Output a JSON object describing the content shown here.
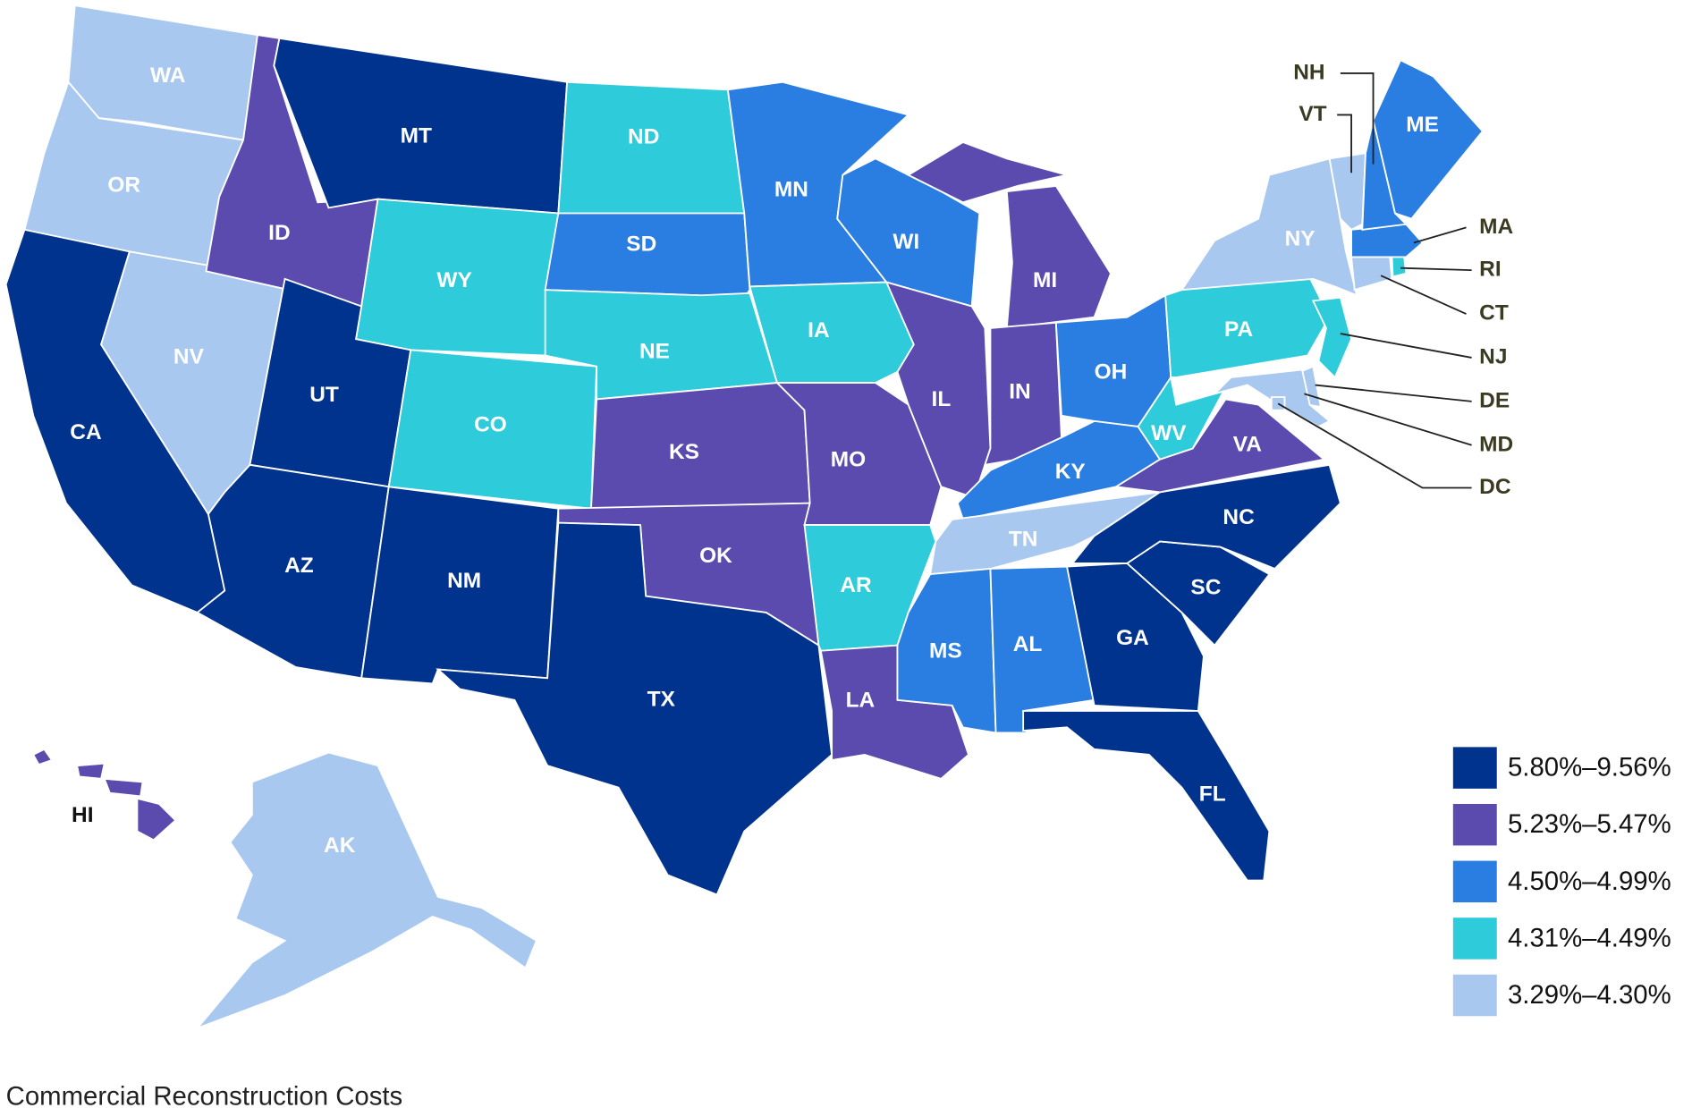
{
  "title": "Commercial Reconstruction Costs",
  "legend": [
    {
      "label": "5.80%–9.56%",
      "color": "#00338d"
    },
    {
      "label": "5.23%–5.47%",
      "color": "#5b4baf"
    },
    {
      "label": "4.50%–4.99%",
      "color": "#2a7de1"
    },
    {
      "label": "4.31%–4.49%",
      "color": "#2ecbdb"
    },
    {
      "label": "3.29%–4.30%",
      "color": "#a9c8f0"
    }
  ],
  "states": [
    {
      "label": "WA",
      "color": "#a9c8f0"
    },
    {
      "label": "OR",
      "color": "#a9c8f0"
    },
    {
      "label": "CA",
      "color": "#00338d"
    },
    {
      "label": "NV",
      "color": "#a9c8f0"
    },
    {
      "label": "ID",
      "color": "#5b4baf"
    },
    {
      "label": "MT",
      "color": "#00338d"
    },
    {
      "label": "WY",
      "color": "#2ecbdb"
    },
    {
      "label": "UT",
      "color": "#00338d"
    },
    {
      "label": "AZ",
      "color": "#00338d"
    },
    {
      "label": "CO",
      "color": "#2ecbdb"
    },
    {
      "label": "NM",
      "color": "#00338d"
    },
    {
      "label": "ND",
      "color": "#2ecbdb"
    },
    {
      "label": "SD",
      "color": "#2a7de1"
    },
    {
      "label": "NE",
      "color": "#2ecbdb"
    },
    {
      "label": "KS",
      "color": "#5b4baf"
    },
    {
      "label": "OK",
      "color": "#5b4baf"
    },
    {
      "label": "TX",
      "color": "#00338d"
    },
    {
      "label": "MN",
      "color": "#2a7de1"
    },
    {
      "label": "IA",
      "color": "#2ecbdb"
    },
    {
      "label": "MO",
      "color": "#5b4baf"
    },
    {
      "label": "AR",
      "color": "#2ecbdb"
    },
    {
      "label": "LA",
      "color": "#5b4baf"
    },
    {
      "label": "WI",
      "color": "#2a7de1"
    },
    {
      "label": "IL",
      "color": "#5b4baf"
    },
    {
      "label": "MI",
      "color": "#5b4baf"
    },
    {
      "label": "IN",
      "color": "#5b4baf"
    },
    {
      "label": "OH",
      "color": "#2a7de1"
    },
    {
      "label": "KY",
      "color": "#2a7de1"
    },
    {
      "label": "TN",
      "color": "#a9c8f0"
    },
    {
      "label": "MS",
      "color": "#2a7de1"
    },
    {
      "label": "AL",
      "color": "#2a7de1"
    },
    {
      "label": "GA",
      "color": "#00338d"
    },
    {
      "label": "FL",
      "color": "#00338d"
    },
    {
      "label": "SC",
      "color": "#00338d"
    },
    {
      "label": "NC",
      "color": "#00338d"
    },
    {
      "label": "VA",
      "color": "#5b4baf"
    },
    {
      "label": "WV",
      "color": "#2ecbdb"
    },
    {
      "label": "PA",
      "color": "#2ecbdb"
    },
    {
      "label": "NY",
      "color": "#a9c8f0"
    },
    {
      "label": "NJ",
      "color": "#2ecbdb"
    },
    {
      "label": "DE",
      "color": "#a9c8f0"
    },
    {
      "label": "MD",
      "color": "#a9c8f0"
    },
    {
      "label": "DC",
      "color": "#a9c8f0"
    },
    {
      "label": "CT",
      "color": "#a9c8f0"
    },
    {
      "label": "RI",
      "color": "#2ecbdb"
    },
    {
      "label": "MA",
      "color": "#2a7de1"
    },
    {
      "label": "VT",
      "color": "#a9c8f0"
    },
    {
      "label": "NH",
      "color": "#2a7de1"
    },
    {
      "label": "ME",
      "color": "#2a7de1"
    },
    {
      "label": "AK",
      "color": "#a9c8f0"
    },
    {
      "label": "HI",
      "color": "#5b4baf"
    }
  ]
}
